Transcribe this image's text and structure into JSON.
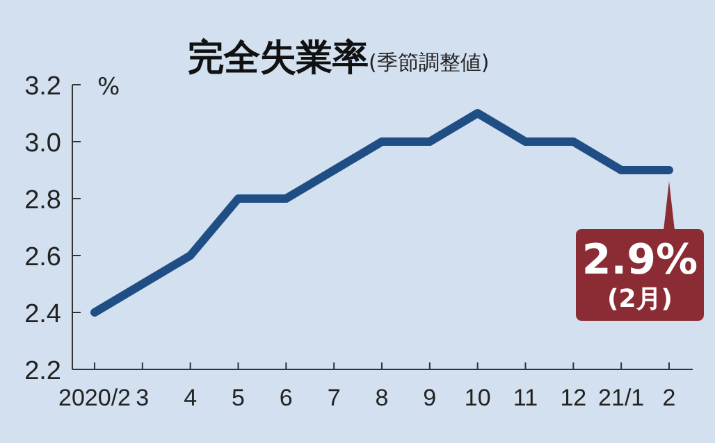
{
  "chart_data": {
    "type": "line",
    "title": "完全失業率",
    "subtitle": "(季節調整値)",
    "ylabel": "%",
    "categories": [
      "2020/2",
      "3",
      "4",
      "5",
      "6",
      "7",
      "8",
      "9",
      "10",
      "11",
      "12",
      "21/1",
      "2"
    ],
    "series": [
      {
        "color": "#1f4e85",
        "values": [
          2.4,
          2.5,
          2.6,
          2.8,
          2.8,
          2.9,
          3.0,
          3.0,
          3.1,
          3.0,
          3.0,
          2.9,
          2.9
        ]
      }
    ],
    "ylim": [
      2.2,
      3.2
    ],
    "yticks": [
      2.2,
      2.4,
      2.6,
      2.8,
      {
        "value": 3.0,
        "label": "3.0"
      },
      3.2
    ],
    "marker": "none",
    "line_style": "solid",
    "grid": false,
    "annotations": [
      {
        "text": "2.9%(2月)",
        "x": "2",
        "y": 2.9
      }
    ]
  }
}
